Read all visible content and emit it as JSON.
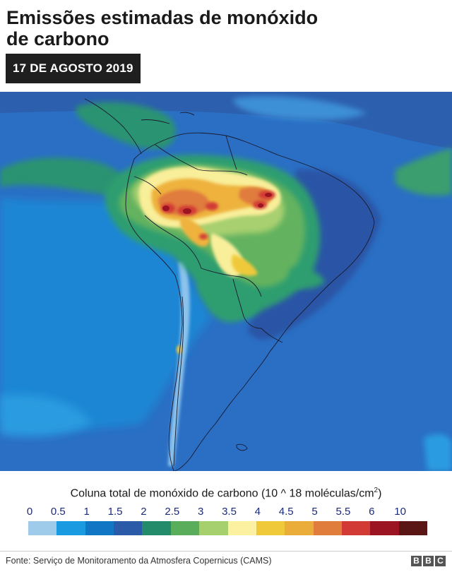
{
  "header": {
    "title_line1": "Emissões estimadas de monóxido",
    "title_line2": "de carbono",
    "date": "17 DE AGOSTO 2019"
  },
  "legend": {
    "title": "Coluna total de monóxido de carbono (10 ^ 18 moléculas/cm",
    "title_sup": "2",
    "title_end": ")",
    "ticks": [
      "0",
      "0.5",
      "1",
      "1.5",
      "2",
      "2.5",
      "3",
      "3.5",
      "4",
      "4.5",
      "5",
      "5.5",
      "6",
      "10"
    ],
    "colors": [
      "#9ecbea",
      "#1a9ae0",
      "#1177c4",
      "#2a5aa8",
      "#238a6a",
      "#5aad5a",
      "#a6cf6e",
      "#fbf1a0",
      "#f0c93a",
      "#ebad3a",
      "#e07c3c",
      "#d23a36",
      "#9c1421",
      "#5a1515"
    ]
  },
  "footer": {
    "source": "Fonte: Serviço de Monitoramento da Atmosfera Copernicus (CAMS)",
    "logo_letters": [
      "B",
      "B",
      "C"
    ]
  }
}
